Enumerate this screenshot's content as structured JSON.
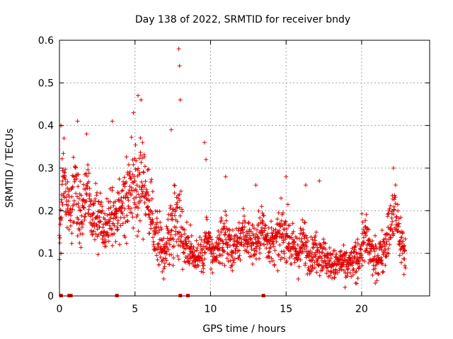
{
  "chart_data": {
    "type": "scatter",
    "title": "Day 138 of 2022, SRMTID for receiver bndy",
    "xlabel": "GPS time / hours",
    "ylabel": "SRMTID / TECUs",
    "xlim": [
      0,
      24.5
    ],
    "ylim": [
      0,
      0.6
    ],
    "xticks": [
      0,
      5,
      10,
      15,
      20
    ],
    "yticks": [
      0,
      0.1,
      0.2,
      0.3,
      0.4,
      0.5,
      0.6
    ],
    "xtick_labels": [
      "0",
      "5",
      "10",
      "15",
      "20"
    ],
    "ytick_labels": [
      "0",
      "0.1",
      "0.2",
      "0.3",
      "0.4",
      "0.5",
      "0.6"
    ],
    "grid": true,
    "marker": "+",
    "color": "#e00000",
    "trend": [
      [
        0.0,
        0.12,
        0.05
      ],
      [
        0.2,
        0.28,
        0.07
      ],
      [
        0.5,
        0.24,
        0.06
      ],
      [
        0.8,
        0.2,
        0.06
      ],
      [
        1.0,
        0.26,
        0.07
      ],
      [
        1.4,
        0.18,
        0.06
      ],
      [
        1.8,
        0.26,
        0.07
      ],
      [
        2.2,
        0.17,
        0.05
      ],
      [
        2.6,
        0.19,
        0.06
      ],
      [
        3.0,
        0.16,
        0.05
      ],
      [
        3.4,
        0.2,
        0.06
      ],
      [
        3.8,
        0.17,
        0.06
      ],
      [
        4.2,
        0.22,
        0.07
      ],
      [
        4.6,
        0.24,
        0.07
      ],
      [
        5.0,
        0.26,
        0.08
      ],
      [
        5.4,
        0.28,
        0.09
      ],
      [
        5.8,
        0.24,
        0.07
      ],
      [
        6.2,
        0.16,
        0.05
      ],
      [
        6.6,
        0.13,
        0.05
      ],
      [
        7.0,
        0.1,
        0.04
      ],
      [
        7.4,
        0.16,
        0.07
      ],
      [
        7.8,
        0.2,
        0.09
      ],
      [
        8.2,
        0.13,
        0.05
      ],
      [
        8.6,
        0.11,
        0.04
      ],
      [
        9.0,
        0.09,
        0.03
      ],
      [
        9.4,
        0.1,
        0.04
      ],
      [
        9.8,
        0.14,
        0.06
      ],
      [
        10.2,
        0.08,
        0.03
      ],
      [
        10.6,
        0.12,
        0.04
      ],
      [
        11.0,
        0.15,
        0.05
      ],
      [
        11.4,
        0.1,
        0.04
      ],
      [
        11.8,
        0.13,
        0.04
      ],
      [
        12.2,
        0.15,
        0.05
      ],
      [
        12.6,
        0.13,
        0.04
      ],
      [
        13.0,
        0.12,
        0.04
      ],
      [
        13.4,
        0.16,
        0.05
      ],
      [
        13.8,
        0.13,
        0.04
      ],
      [
        14.2,
        0.12,
        0.04
      ],
      [
        14.6,
        0.14,
        0.05
      ],
      [
        15.0,
        0.15,
        0.05
      ],
      [
        15.4,
        0.11,
        0.04
      ],
      [
        15.8,
        0.1,
        0.04
      ],
      [
        16.2,
        0.13,
        0.05
      ],
      [
        16.6,
        0.09,
        0.03
      ],
      [
        17.0,
        0.11,
        0.04
      ],
      [
        17.4,
        0.1,
        0.04
      ],
      [
        17.8,
        0.08,
        0.03
      ],
      [
        18.2,
        0.07,
        0.03
      ],
      [
        18.6,
        0.08,
        0.03
      ],
      [
        19.0,
        0.07,
        0.03
      ],
      [
        19.4,
        0.08,
        0.03
      ],
      [
        19.8,
        0.09,
        0.04
      ],
      [
        20.2,
        0.14,
        0.05
      ],
      [
        20.6,
        0.1,
        0.04
      ],
      [
        21.0,
        0.08,
        0.03
      ],
      [
        21.4,
        0.11,
        0.04
      ],
      [
        21.8,
        0.15,
        0.05
      ],
      [
        22.2,
        0.2,
        0.06
      ],
      [
        22.6,
        0.13,
        0.05
      ],
      [
        22.9,
        0.1,
        0.04
      ]
    ],
    "notable_points": [
      [
        0.1,
        0.4
      ],
      [
        0.3,
        0.37
      ],
      [
        1.2,
        0.41
      ],
      [
        1.8,
        0.38
      ],
      [
        3.5,
        0.41
      ],
      [
        5.2,
        0.47
      ],
      [
        5.4,
        0.46
      ],
      [
        4.9,
        0.43
      ],
      [
        7.4,
        0.39
      ],
      [
        7.9,
        0.58
      ],
      [
        7.95,
        0.54
      ],
      [
        8.0,
        0.46
      ],
      [
        9.6,
        0.36
      ],
      [
        9.7,
        0.32
      ],
      [
        11.0,
        0.28
      ],
      [
        13.0,
        0.26
      ],
      [
        15.0,
        0.28
      ],
      [
        16.3,
        0.26
      ],
      [
        17.2,
        0.27
      ],
      [
        22.1,
        0.3
      ],
      [
        0.1,
        0.1
      ],
      [
        6.9,
        0.04
      ],
      [
        18.9,
        0.02
      ],
      [
        19.6,
        0.03
      ],
      [
        20.9,
        0.03
      ],
      [
        22.8,
        0.05
      ]
    ],
    "base_markers_x": [
      0.1,
      0.65,
      0.75,
      3.8,
      8.0,
      8.5,
      13.5
    ]
  }
}
